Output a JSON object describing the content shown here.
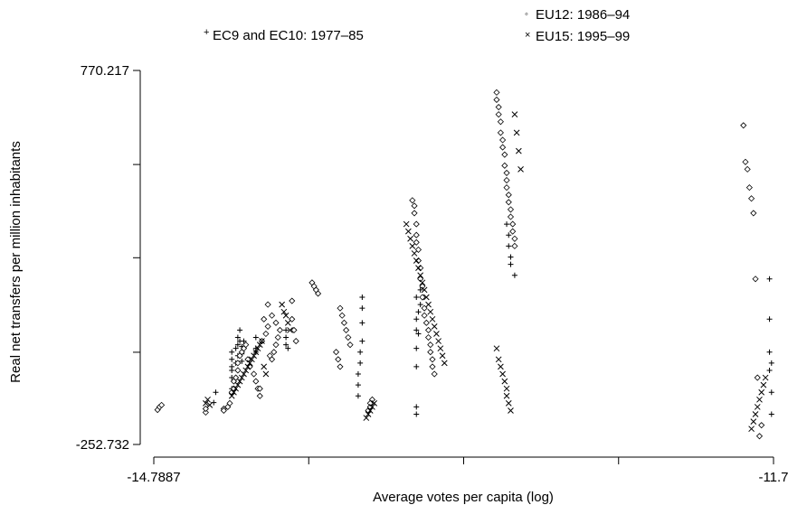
{
  "chart_data": {
    "type": "scatter",
    "xlabel": "Average votes per capita (log)",
    "ylabel": "Real net transfers per million inhabitants",
    "xlim": [
      -14.7887,
      -11.7
    ],
    "ylim": [
      -252.732,
      770.217
    ],
    "x_ticks": [
      -14.7887,
      -14.0165,
      -13.2444,
      -12.4722,
      -11.7
    ],
    "x_tick_labels": [
      "-14.7887",
      "",
      "",
      "",
      "-11.7"
    ],
    "y_ticks": [
      -252.732,
      -0.5,
      258.0,
      513.0,
      770.217
    ],
    "y_tick_labels": [
      "-252.732",
      "",
      "",
      "",
      "770.217"
    ],
    "legend_position": "top",
    "legend": [
      {
        "marker": "+",
        "label": "EC9 and EC10: 1977–85"
      },
      {
        "marker": "◦",
        "label": "EU12: 1986–94"
      },
      {
        "marker": "×",
        "label": "EU15: 1995–99"
      }
    ],
    "series": [
      {
        "name": "EC9 and EC10: 1977–85",
        "marker": "plus",
        "x": [
          -14.49,
          -14.48,
          -14.4,
          -14.4,
          -14.4,
          -14.4,
          -14.4,
          -14.4,
          -14.38,
          -14.38,
          -14.37,
          -14.37,
          -14.37,
          -14.36,
          -14.36,
          -14.35,
          -14.35,
          -14.35,
          -14.34,
          -14.28,
          -14.28,
          -14.28,
          -14.13,
          -14.13,
          -14.13,
          -14.12,
          -13.77,
          -13.77,
          -13.77,
          -13.76,
          -13.76,
          -13.75,
          -13.75,
          -13.75,
          -13.75,
          -13.48,
          -13.48,
          -13.48,
          -13.48,
          -13.48,
          -13.48,
          -13.48,
          -13.47,
          -13.47,
          -13.46,
          -13.46,
          -13.03,
          -13.02,
          -13.02,
          -13.01,
          -13.01,
          -12.99,
          -11.71,
          -11.71,
          -11.71,
          -11.72,
          -11.72,
          -11.72,
          -11.72
        ],
        "y": [
          -138,
          -110,
          -100,
          -70,
          -40,
          -20,
          0,
          -50,
          -30,
          10,
          20,
          40,
          -10,
          60,
          30,
          -25,
          -5,
          15,
          30,
          40,
          10,
          0,
          60,
          20,
          40,
          10,
          -120,
          -90,
          -60,
          -30,
          0,
          30,
          80,
          120,
          150,
          -170,
          -150,
          -40,
          10,
          60,
          90,
          150,
          50,
          110,
          170,
          130,
          350,
          320,
          290,
          260,
          240,
          210,
          -170,
          -110,
          -30,
          0,
          90,
          200,
          -50
        ]
      },
      {
        "name": "EU12: 1986–94",
        "marker": "circle",
        "x": [
          -14.77,
          -14.76,
          -14.75,
          -14.53,
          -14.53,
          -14.44,
          -14.44,
          -14.42,
          -14.41,
          -14.4,
          -14.39,
          -14.39,
          -14.38,
          -14.37,
          -14.37,
          -14.36,
          -14.35,
          -14.34,
          -14.33,
          -14.32,
          -14.31,
          -14.29,
          -14.28,
          -14.27,
          -14.26,
          -14.25,
          -14.23,
          -14.22,
          -14.21,
          -14.2,
          -14.19,
          -14.18,
          -14.17,
          -14.16,
          -14.18,
          -14.2,
          -14.22,
          -14.24,
          -14.26,
          -14.1,
          -14.1,
          -14.09,
          -14.08,
          -14.0,
          -13.99,
          -13.98,
          -13.97,
          -13.86,
          -13.85,
          -13.84,
          -13.83,
          -13.82,
          -13.81,
          -13.88,
          -13.87,
          -13.86,
          -13.72,
          -13.71,
          -13.71,
          -13.7,
          -13.5,
          -13.49,
          -13.49,
          -13.48,
          -13.48,
          -13.48,
          -13.47,
          -13.47,
          -13.46,
          -13.46,
          -13.45,
          -13.45,
          -13.44,
          -13.44,
          -13.43,
          -13.42,
          -13.42,
          -13.41,
          -13.41,
          -13.4,
          -13.4,
          -13.39,
          -13.08,
          -13.08,
          -13.07,
          -13.07,
          -13.06,
          -13.06,
          -13.05,
          -13.05,
          -13.04,
          -13.04,
          -13.03,
          -13.03,
          -13.03,
          -13.02,
          -13.02,
          -13.01,
          -13.01,
          -13.0,
          -13.0,
          -12.99,
          -12.99,
          -11.85,
          -11.84,
          -11.83,
          -11.82,
          -11.81,
          -11.8,
          -11.79,
          -11.78,
          -11.77,
          -11.76
        ],
        "y": [
          -158,
          -150,
          -145,
          -165,
          -155,
          -155,
          -160,
          -150,
          -140,
          -110,
          -100,
          -80,
          -70,
          -50,
          -30,
          -10,
          0,
          10,
          20,
          -20,
          -40,
          -60,
          -80,
          -100,
          -120,
          30,
          50,
          70,
          -10,
          -20,
          0,
          20,
          40,
          60,
          80,
          100,
          130,
          90,
          -100,
          140,
          90,
          60,
          30,
          190,
          180,
          170,
          160,
          120,
          100,
          80,
          60,
          40,
          20,
          0,
          -20,
          -40,
          -160,
          -150,
          -140,
          -130,
          415,
          400,
          380,
          350,
          320,
          300,
          280,
          250,
          230,
          200,
          180,
          150,
          120,
          100,
          80,
          60,
          40,
          20,
          0,
          -20,
          -40,
          -60,
          710,
          690,
          670,
          650,
          630,
          600,
          580,
          560,
          540,
          510,
          490,
          470,
          450,
          430,
          410,
          390,
          370,
          350,
          330,
          310,
          290,
          620,
          520,
          500,
          450,
          420,
          380,
          200,
          -70,
          -230,
          -200
        ]
      },
      {
        "name": "EU15: 1995–99",
        "marker": "cross",
        "x": [
          -14.53,
          -14.52,
          -14.51,
          -14.4,
          -14.39,
          -14.38,
          -14.37,
          -14.36,
          -14.35,
          -14.34,
          -14.33,
          -14.32,
          -14.31,
          -14.3,
          -14.29,
          -14.28,
          -14.27,
          -14.26,
          -14.25,
          -14.24,
          -14.23,
          -14.15,
          -14.14,
          -14.13,
          -14.12,
          -14.11,
          -13.73,
          -13.72,
          -13.71,
          -13.7,
          -13.69,
          -13.53,
          -13.52,
          -13.51,
          -13.5,
          -13.49,
          -13.48,
          -13.47,
          -13.46,
          -13.45,
          -13.44,
          -13.43,
          -13.42,
          -13.41,
          -13.4,
          -13.39,
          -13.38,
          -13.37,
          -13.36,
          -13.35,
          -13.34,
          -13.08,
          -13.07,
          -13.06,
          -13.05,
          -13.04,
          -13.03,
          -13.03,
          -13.02,
          -13.01,
          -12.99,
          -12.98,
          -12.97,
          -12.96,
          -11.81,
          -11.8,
          -11.79,
          -11.78,
          -11.77,
          -11.76,
          -11.75,
          -11.74
        ],
        "y": [
          -140,
          -130,
          -145,
          -120,
          -110,
          -100,
          -90,
          -80,
          -70,
          -60,
          -50,
          -40,
          -30,
          -20,
          -10,
          0,
          10,
          20,
          30,
          -40,
          -60,
          130,
          110,
          100,
          80,
          60,
          -180,
          -170,
          -160,
          -150,
          -140,
          350,
          330,
          310,
          290,
          270,
          250,
          230,
          210,
          190,
          170,
          150,
          130,
          110,
          90,
          70,
          50,
          30,
          10,
          -10,
          -30,
          10,
          -20,
          -40,
          -60,
          -80,
          -100,
          -120,
          -140,
          -160,
          650,
          600,
          550,
          500,
          -210,
          -190,
          -170,
          -150,
          -130,
          -110,
          -90,
          -70
        ]
      }
    ]
  }
}
